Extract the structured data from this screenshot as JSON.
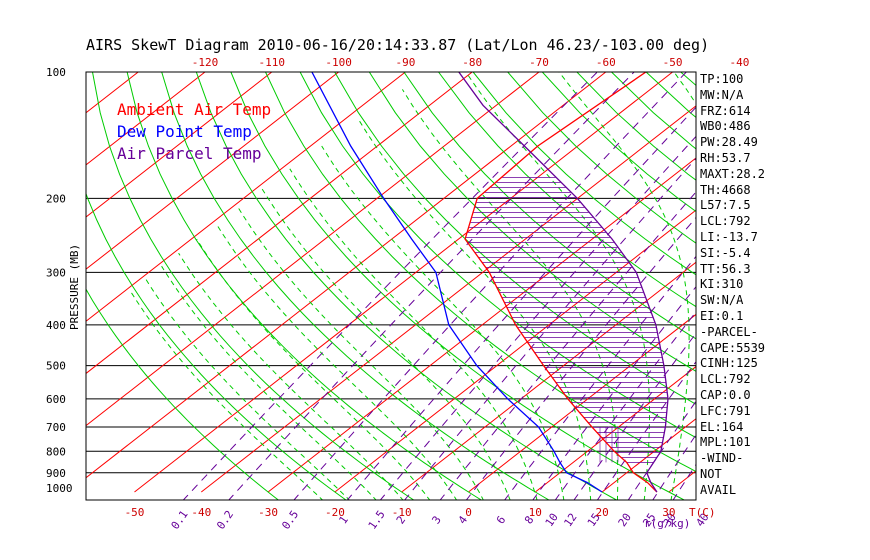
{
  "title": "AIRS SkewT Diagram 2010-06-16/20:14:33.87 (Lat/Lon 46.23/-103.00 deg)",
  "y_axis_label": "PRESSURE (MB)",
  "x_axis_unit_label": "T(C)",
  "mixing_ratio_unit_label": "r(g/kg)",
  "legend": [
    {
      "label": "Ambient Air Temp",
      "color": "#ff0000"
    },
    {
      "label": "Dew Point Temp",
      "color": "#0000ff"
    },
    {
      "label": "Air Parcel Temp",
      "color": "#660099"
    }
  ],
  "colors": {
    "isotherm": "#ff0000",
    "dry_adiabat": "#00cc00",
    "moist_adiabat": "#00cc00",
    "mixing_ratio": "#660099",
    "isobar": "#000000",
    "cape_hatch": "#660099"
  },
  "stats": [
    "TP:100",
    "MW:N/A",
    "FRZ:614",
    "WB0:486",
    "PW:28.49",
    "RH:53.7",
    "MAXT:28.2",
    "TH:4668",
    "L57:7.5",
    "LCL:792",
    "LI:-13.7",
    "SI:-5.4",
    "TT:56.3",
    "KI:310",
    "SW:N/A",
    "EI:0.1",
    "-PARCEL-",
    "CAPE:5539",
    "CINH:125",
    "LCL:792",
    "CAP:0.0",
    "LFC:791",
    "EL:164",
    "MPL:101",
    "-WIND-",
    "NOT",
    "AVAIL"
  ],
  "chart_data": {
    "type": "skew-t",
    "title": "AIRS SkewT Diagram 2010-06-16/20:14:33.87 (Lat/Lon 46.23/-103.00 deg)",
    "ylabel": "PRESSURE (MB)",
    "xlabel": "T(C)",
    "pressure_ticks": [
      100,
      200,
      300,
      400,
      500,
      600,
      700,
      800,
      900,
      1000
    ],
    "top_temp_ticks": [
      -120,
      -110,
      -100,
      -90,
      -80,
      -70,
      -60,
      -50,
      -40
    ],
    "bottom_temp_ticks": [
      -50,
      -40,
      -30,
      -20,
      -10,
      0,
      10,
      20,
      30
    ],
    "mixing_ratio_ticks": [
      "0.1",
      "0.2",
      "0.5",
      "1",
      "1.5",
      "2",
      "3",
      "4",
      "6",
      "8",
      "10",
      "12",
      "15",
      "20",
      "25",
      "30",
      "40"
    ],
    "series": [
      {
        "name": "Ambient Air Temp",
        "pressure": [
          1000,
          950,
          900,
          850,
          800,
          700,
          600,
          500,
          400,
          300,
          250,
          200,
          150,
          100
        ],
        "temp": [
          28.2,
          25.0,
          21.0,
          18.0,
          14.0,
          6.0,
          -3.0,
          -13.0,
          -25.0,
          -39.0,
          -49.0,
          -55.0,
          -56.0,
          -54.0
        ]
      },
      {
        "name": "Dew Point Temp",
        "pressure": [
          1000,
          950,
          900,
          850,
          800,
          700,
          600,
          500,
          400,
          300,
          250,
          200,
          150,
          100
        ],
        "temp": [
          20.0,
          16.0,
          11.0,
          8.0,
          5.0,
          -2.0,
          -12.0,
          -23.0,
          -35.0,
          -47.0,
          -57.0,
          -69.0,
          -84.0,
          -104.0
        ]
      },
      {
        "name": "Air Parcel Temp",
        "pressure": [
          1000,
          950,
          900,
          800,
          700,
          600,
          500,
          400,
          300,
          250,
          200,
          150,
          120,
          100
        ],
        "temp": [
          28.2,
          25.5,
          23.0,
          21.0,
          17.0,
          12.0,
          5.0,
          -4.0,
          -17.0,
          -27.0,
          -40.0,
          -58.0,
          -72.0,
          -82.0
        ]
      }
    ]
  }
}
